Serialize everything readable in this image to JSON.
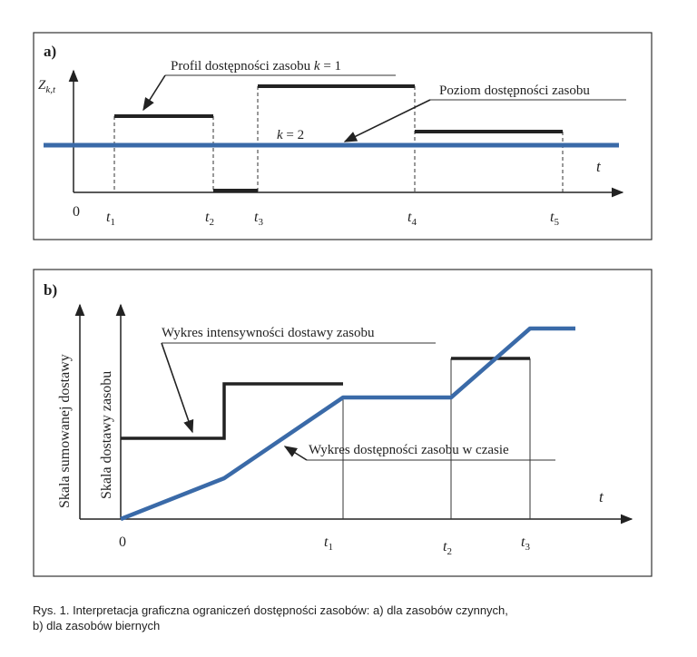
{
  "panel_a": {
    "label": "a)",
    "y_axis_label_main": "Z",
    "y_axis_label_sub": "k,t",
    "origin": "0",
    "t_axis_label": "t",
    "ticks": [
      {
        "base": "t",
        "sub": "1"
      },
      {
        "base": "t",
        "sub": "2"
      },
      {
        "base": "t",
        "sub": "3"
      },
      {
        "base": "t",
        "sub": "4"
      },
      {
        "base": "t",
        "sub": "5"
      }
    ],
    "annotation_profile_prefix": "Profil dostępności zasobu ",
    "annotation_profile_var": "k",
    "annotation_profile_suffix": " = 1",
    "annotation_level": "Poziom dostępności zasobu",
    "annotation_k2_var": "k",
    "annotation_k2_suffix": " = 2",
    "colors": {
      "profile": "#222222",
      "level": "#3a6aa8"
    }
  },
  "panel_b": {
    "label": "b)",
    "y_axis_outer_label": "Skala sumowanej dostawy",
    "y_axis_inner_label": "Skala dostawy zasobu",
    "origin": "0",
    "t_axis_label": "t",
    "ticks": [
      {
        "base": "t",
        "sub": "1"
      },
      {
        "base": "t",
        "sub": "2"
      },
      {
        "base": "t",
        "sub": "3"
      }
    ],
    "annotation_intensity": "Wykres intensywności dostawy zasobu",
    "annotation_availability": "Wykres dostępności zasobu w czasie",
    "colors": {
      "intensity": "#222222",
      "availability": "#3a6aa8"
    }
  },
  "caption": {
    "line1": "Rys.  1. Interpretacja graficzna ograniczeń dostępności zasobów: a) dla zasobów czynnych,",
    "line2": "b) dla zasobów biernych"
  }
}
